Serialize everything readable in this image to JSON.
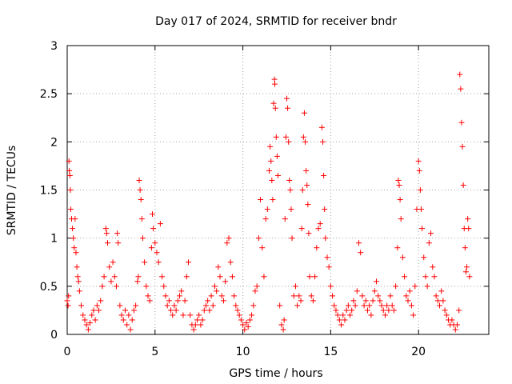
{
  "chart_data": {
    "type": "scatter",
    "title": "Day 017 of 2024, SRMTID for receiver bndr",
    "xlabel": "GPS time / hours",
    "ylabel": "SRMTID / TECUs",
    "xlim": [
      0,
      24
    ],
    "ylim": [
      0,
      3
    ],
    "xticks": [
      0,
      5,
      10,
      15,
      20
    ],
    "yticks": [
      0,
      0.5,
      1,
      1.5,
      2,
      2.5,
      3
    ],
    "ytick_labels": [
      "0",
      "0.5",
      "1",
      "1.5",
      "2",
      "2.5",
      "3"
    ],
    "grid": true,
    "marker": "+",
    "color": "#ff0000",
    "series": [
      {
        "name": "SRMTID",
        "points": [
          [
            0.0,
            0.35
          ],
          [
            0.05,
            0.3
          ],
          [
            0.08,
            0.4
          ],
          [
            0.1,
            1.8
          ],
          [
            0.12,
            1.7
          ],
          [
            0.15,
            1.65
          ],
          [
            0.18,
            1.5
          ],
          [
            0.2,
            1.3
          ],
          [
            0.25,
            1.2
          ],
          [
            0.3,
            1.1
          ],
          [
            0.35,
            1.0
          ],
          [
            0.4,
            0.9
          ],
          [
            0.45,
            1.2
          ],
          [
            0.5,
            0.85
          ],
          [
            0.55,
            0.7
          ],
          [
            0.6,
            0.6
          ],
          [
            0.65,
            0.55
          ],
          [
            0.7,
            0.45
          ],
          [
            0.8,
            0.3
          ],
          [
            0.9,
            0.2
          ],
          [
            1.0,
            0.15
          ],
          [
            1.1,
            0.1
          ],
          [
            1.2,
            0.05
          ],
          [
            1.3,
            0.12
          ],
          [
            1.4,
            0.2
          ],
          [
            1.5,
            0.25
          ],
          [
            1.6,
            0.15
          ],
          [
            1.7,
            0.3
          ],
          [
            1.8,
            0.25
          ],
          [
            1.9,
            0.35
          ],
          [
            2.0,
            0.5
          ],
          [
            2.1,
            0.6
          ],
          [
            2.2,
            1.1
          ],
          [
            2.25,
            1.05
          ],
          [
            2.3,
            0.95
          ],
          [
            2.4,
            0.7
          ],
          [
            2.5,
            0.55
          ],
          [
            2.6,
            0.75
          ],
          [
            2.7,
            0.6
          ],
          [
            2.8,
            0.5
          ],
          [
            2.85,
            1.05
          ],
          [
            2.9,
            0.95
          ],
          [
            3.0,
            0.3
          ],
          [
            3.1,
            0.2
          ],
          [
            3.2,
            0.15
          ],
          [
            3.3,
            0.25
          ],
          [
            3.4,
            0.1
          ],
          [
            3.5,
            0.2
          ],
          [
            3.6,
            0.05
          ],
          [
            3.7,
            0.15
          ],
          [
            3.8,
            0.25
          ],
          [
            3.9,
            0.3
          ],
          [
            4.0,
            0.55
          ],
          [
            4.05,
            0.6
          ],
          [
            4.1,
            1.6
          ],
          [
            4.15,
            1.5
          ],
          [
            4.2,
            1.4
          ],
          [
            4.25,
            1.2
          ],
          [
            4.3,
            1.0
          ],
          [
            4.4,
            0.75
          ],
          [
            4.5,
            0.5
          ],
          [
            4.6,
            0.4
          ],
          [
            4.7,
            0.35
          ],
          [
            4.8,
            0.9
          ],
          [
            4.85,
            1.25
          ],
          [
            4.9,
            1.1
          ],
          [
            5.0,
            0.95
          ],
          [
            5.1,
            0.85
          ],
          [
            5.2,
            0.75
          ],
          [
            5.3,
            1.15
          ],
          [
            5.4,
            0.6
          ],
          [
            5.5,
            0.5
          ],
          [
            5.6,
            0.4
          ],
          [
            5.7,
            0.3
          ],
          [
            5.8,
            0.35
          ],
          [
            5.9,
            0.25
          ],
          [
            6.0,
            0.2
          ],
          [
            6.1,
            0.3
          ],
          [
            6.2,
            0.25
          ],
          [
            6.3,
            0.35
          ],
          [
            6.4,
            0.4
          ],
          [
            6.5,
            0.45
          ],
          [
            6.6,
            0.2
          ],
          [
            6.7,
            0.35
          ],
          [
            6.8,
            0.6
          ],
          [
            6.9,
            0.75
          ],
          [
            7.0,
            0.2
          ],
          [
            7.1,
            0.1
          ],
          [
            7.2,
            0.05
          ],
          [
            7.3,
            0.1
          ],
          [
            7.4,
            0.15
          ],
          [
            7.5,
            0.2
          ],
          [
            7.6,
            0.1
          ],
          [
            7.7,
            0.15
          ],
          [
            7.8,
            0.25
          ],
          [
            7.9,
            0.3
          ],
          [
            8.0,
            0.35
          ],
          [
            8.1,
            0.25
          ],
          [
            8.2,
            0.4
          ],
          [
            8.3,
            0.3
          ],
          [
            8.4,
            0.5
          ],
          [
            8.5,
            0.45
          ],
          [
            8.6,
            0.7
          ],
          [
            8.7,
            0.6
          ],
          [
            8.8,
            0.4
          ],
          [
            8.9,
            0.35
          ],
          [
            9.0,
            0.55
          ],
          [
            9.1,
            0.95
          ],
          [
            9.2,
            1.0
          ],
          [
            9.3,
            0.75
          ],
          [
            9.4,
            0.6
          ],
          [
            9.5,
            0.4
          ],
          [
            9.6,
            0.3
          ],
          [
            9.7,
            0.25
          ],
          [
            9.8,
            0.2
          ],
          [
            9.9,
            0.15
          ],
          [
            10.0,
            0.1
          ],
          [
            10.1,
            0.05
          ],
          [
            10.2,
            0.12
          ],
          [
            10.3,
            0.08
          ],
          [
            10.4,
            0.15
          ],
          [
            10.5,
            0.2
          ],
          [
            10.6,
            0.3
          ],
          [
            10.7,
            0.45
          ],
          [
            10.8,
            0.5
          ],
          [
            10.9,
            1.0
          ],
          [
            11.0,
            1.4
          ],
          [
            11.1,
            0.9
          ],
          [
            11.2,
            0.6
          ],
          [
            11.3,
            1.2
          ],
          [
            11.4,
            1.3
          ],
          [
            11.5,
            1.7
          ],
          [
            11.55,
            1.95
          ],
          [
            11.6,
            1.8
          ],
          [
            11.65,
            1.6
          ],
          [
            11.7,
            1.4
          ],
          [
            11.75,
            2.4
          ],
          [
            11.8,
            2.65
          ],
          [
            11.82,
            2.6
          ],
          [
            11.85,
            2.35
          ],
          [
            11.9,
            2.05
          ],
          [
            11.95,
            1.85
          ],
          [
            12.0,
            1.65
          ],
          [
            12.1,
            0.3
          ],
          [
            12.2,
            0.1
          ],
          [
            12.3,
            0.05
          ],
          [
            12.35,
            0.15
          ],
          [
            12.4,
            1.2
          ],
          [
            12.45,
            2.05
          ],
          [
            12.5,
            2.45
          ],
          [
            12.55,
            2.35
          ],
          [
            12.6,
            2.0
          ],
          [
            12.65,
            1.6
          ],
          [
            12.7,
            1.5
          ],
          [
            12.75,
            1.3
          ],
          [
            12.8,
            1.0
          ],
          [
            12.9,
            0.4
          ],
          [
            13.0,
            0.5
          ],
          [
            13.1,
            0.3
          ],
          [
            13.2,
            0.4
          ],
          [
            13.3,
            0.35
          ],
          [
            13.35,
            1.1
          ],
          [
            13.4,
            1.5
          ],
          [
            13.45,
            2.05
          ],
          [
            13.5,
            2.3
          ],
          [
            13.55,
            2.0
          ],
          [
            13.6,
            1.7
          ],
          [
            13.65,
            1.55
          ],
          [
            13.7,
            1.35
          ],
          [
            13.75,
            1.05
          ],
          [
            13.8,
            0.6
          ],
          [
            13.9,
            0.4
          ],
          [
            14.0,
            0.35
          ],
          [
            14.1,
            0.6
          ],
          [
            14.2,
            0.9
          ],
          [
            14.3,
            1.1
          ],
          [
            14.4,
            1.15
          ],
          [
            14.5,
            2.15
          ],
          [
            14.55,
            2.0
          ],
          [
            14.6,
            1.65
          ],
          [
            14.65,
            1.3
          ],
          [
            14.7,
            1.0
          ],
          [
            14.8,
            0.8
          ],
          [
            14.9,
            0.7
          ],
          [
            15.0,
            0.5
          ],
          [
            15.1,
            0.4
          ],
          [
            15.2,
            0.3
          ],
          [
            15.3,
            0.25
          ],
          [
            15.4,
            0.2
          ],
          [
            15.5,
            0.15
          ],
          [
            15.6,
            0.1
          ],
          [
            15.7,
            0.2
          ],
          [
            15.8,
            0.15
          ],
          [
            15.9,
            0.25
          ],
          [
            16.0,
            0.3
          ],
          [
            16.1,
            0.2
          ],
          [
            16.2,
            0.25
          ],
          [
            16.3,
            0.35
          ],
          [
            16.4,
            0.3
          ],
          [
            16.5,
            0.45
          ],
          [
            16.6,
            0.95
          ],
          [
            16.7,
            0.85
          ],
          [
            16.8,
            0.4
          ],
          [
            16.9,
            0.3
          ],
          [
            17.0,
            0.35
          ],
          [
            17.1,
            0.25
          ],
          [
            17.2,
            0.3
          ],
          [
            17.3,
            0.2
          ],
          [
            17.4,
            0.35
          ],
          [
            17.5,
            0.45
          ],
          [
            17.6,
            0.55
          ],
          [
            17.7,
            0.4
          ],
          [
            17.8,
            0.35
          ],
          [
            17.9,
            0.3
          ],
          [
            18.0,
            0.25
          ],
          [
            18.1,
            0.2
          ],
          [
            18.2,
            0.3
          ],
          [
            18.3,
            0.25
          ],
          [
            18.4,
            0.4
          ],
          [
            18.5,
            0.3
          ],
          [
            18.6,
            0.25
          ],
          [
            18.7,
            0.5
          ],
          [
            18.8,
            0.9
          ],
          [
            18.85,
            1.6
          ],
          [
            18.9,
            1.55
          ],
          [
            18.95,
            1.4
          ],
          [
            19.0,
            1.2
          ],
          [
            19.1,
            0.8
          ],
          [
            19.2,
            0.6
          ],
          [
            19.3,
            0.4
          ],
          [
            19.4,
            0.35
          ],
          [
            19.5,
            0.45
          ],
          [
            19.6,
            0.3
          ],
          [
            19.7,
            0.2
          ],
          [
            19.8,
            0.5
          ],
          [
            19.9,
            1.3
          ],
          [
            20.0,
            1.8
          ],
          [
            20.05,
            1.7
          ],
          [
            20.1,
            1.5
          ],
          [
            20.15,
            1.3
          ],
          [
            20.2,
            1.1
          ],
          [
            20.3,
            0.8
          ],
          [
            20.4,
            0.6
          ],
          [
            20.5,
            0.5
          ],
          [
            20.6,
            0.95
          ],
          [
            20.7,
            1.05
          ],
          [
            20.8,
            0.7
          ],
          [
            20.9,
            0.6
          ],
          [
            21.0,
            0.4
          ],
          [
            21.1,
            0.35
          ],
          [
            21.2,
            0.3
          ],
          [
            21.3,
            0.45
          ],
          [
            21.4,
            0.35
          ],
          [
            21.5,
            0.25
          ],
          [
            21.6,
            0.2
          ],
          [
            21.7,
            0.15
          ],
          [
            21.8,
            0.1
          ],
          [
            21.9,
            0.15
          ],
          [
            22.0,
            0.1
          ],
          [
            22.1,
            0.05
          ],
          [
            22.2,
            0.1
          ],
          [
            22.3,
            0.25
          ],
          [
            22.35,
            2.7
          ],
          [
            22.4,
            2.55
          ],
          [
            22.45,
            2.2
          ],
          [
            22.5,
            1.95
          ],
          [
            22.55,
            1.55
          ],
          [
            22.6,
            1.1
          ],
          [
            22.65,
            0.9
          ],
          [
            22.7,
            0.65
          ],
          [
            22.75,
            0.7
          ],
          [
            22.8,
            1.2
          ],
          [
            22.85,
            1.1
          ],
          [
            22.9,
            0.6
          ]
        ]
      }
    ]
  }
}
